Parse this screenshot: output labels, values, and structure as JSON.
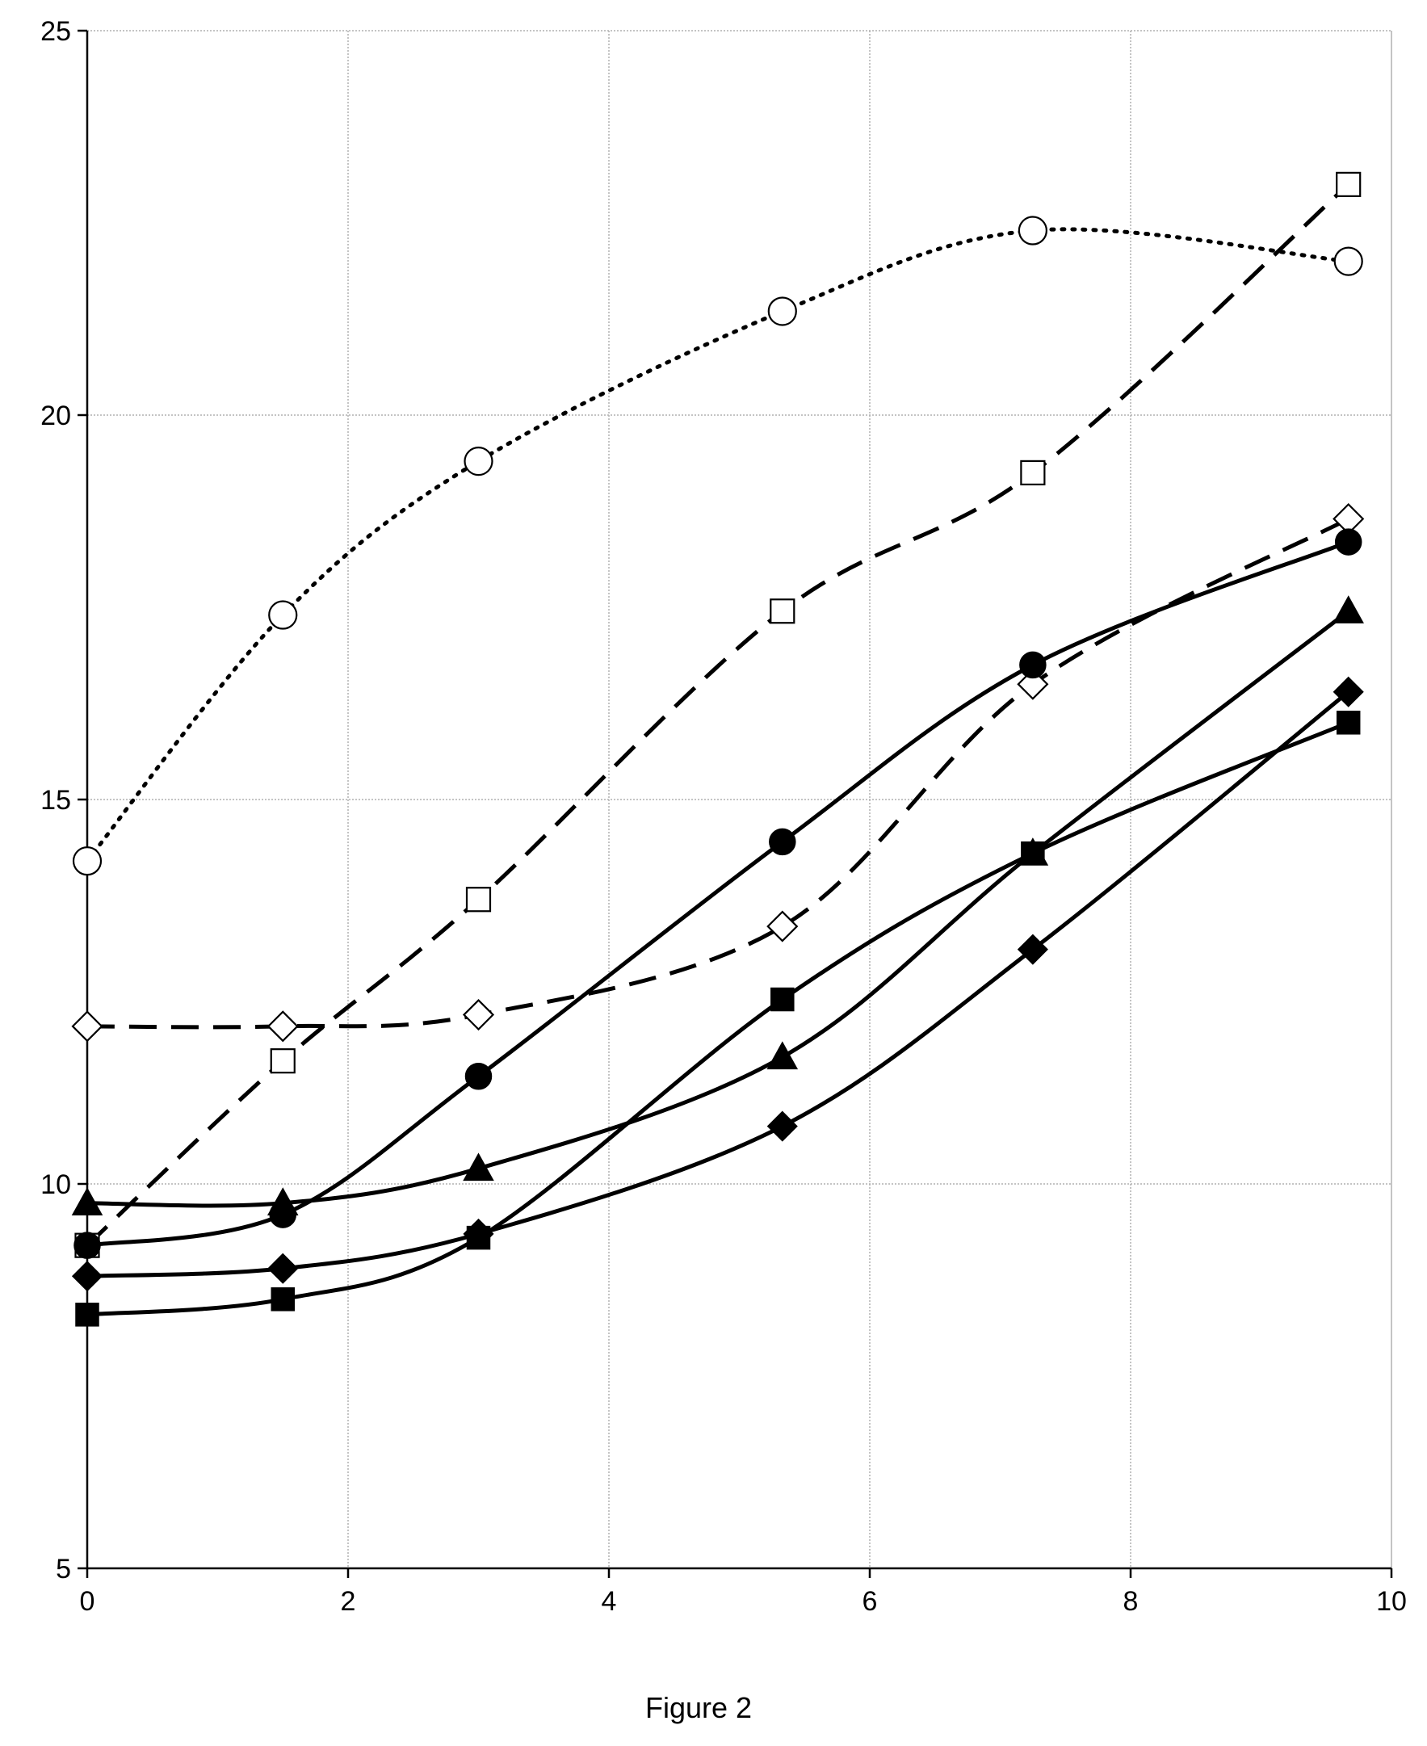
{
  "chart_data": {
    "type": "line",
    "title": "",
    "xlabel": "",
    "ylabel": "",
    "xlim": [
      0,
      10
    ],
    "ylim": [
      5,
      25
    ],
    "grid": true,
    "x_ticks": [
      "0",
      "2",
      "4",
      "6",
      "8",
      "10"
    ],
    "y_ticks": [
      "5",
      "10",
      "15",
      "20",
      "25"
    ],
    "x": [
      0,
      1.5,
      3.0,
      5.33,
      7.25,
      9.67
    ],
    "series": [
      {
        "marker": "circle-open",
        "line": "dotted",
        "values": [
          14.2,
          17.4,
          19.4,
          21.35,
          22.4,
          22.0
        ]
      },
      {
        "marker": "square-open",
        "line": "dashed",
        "values": [
          9.2,
          11.6,
          13.7,
          17.45,
          19.25,
          23.0
        ]
      },
      {
        "marker": "diamond-open",
        "line": "dashed",
        "values": [
          12.05,
          12.05,
          12.2,
          13.35,
          16.5,
          18.65
        ]
      },
      {
        "marker": "circle-filled",
        "line": "solid",
        "values": [
          9.2,
          9.6,
          11.4,
          14.45,
          16.75,
          18.35
        ]
      },
      {
        "marker": "triangle-filled",
        "line": "solid",
        "values": [
          9.75,
          9.75,
          10.2,
          11.65,
          14.3,
          17.45
        ]
      },
      {
        "marker": "diamond-filled",
        "line": "solid",
        "values": [
          8.8,
          8.9,
          9.35,
          10.75,
          13.05,
          16.4
        ]
      },
      {
        "marker": "square-filled",
        "line": "solid",
        "values": [
          8.3,
          8.5,
          9.3,
          12.4,
          14.3,
          16.0
        ]
      }
    ]
  },
  "caption": "Figure 2",
  "colors": {
    "ink": "#000000",
    "grid": "#b0b0b0",
    "background": "#ffffff"
  }
}
